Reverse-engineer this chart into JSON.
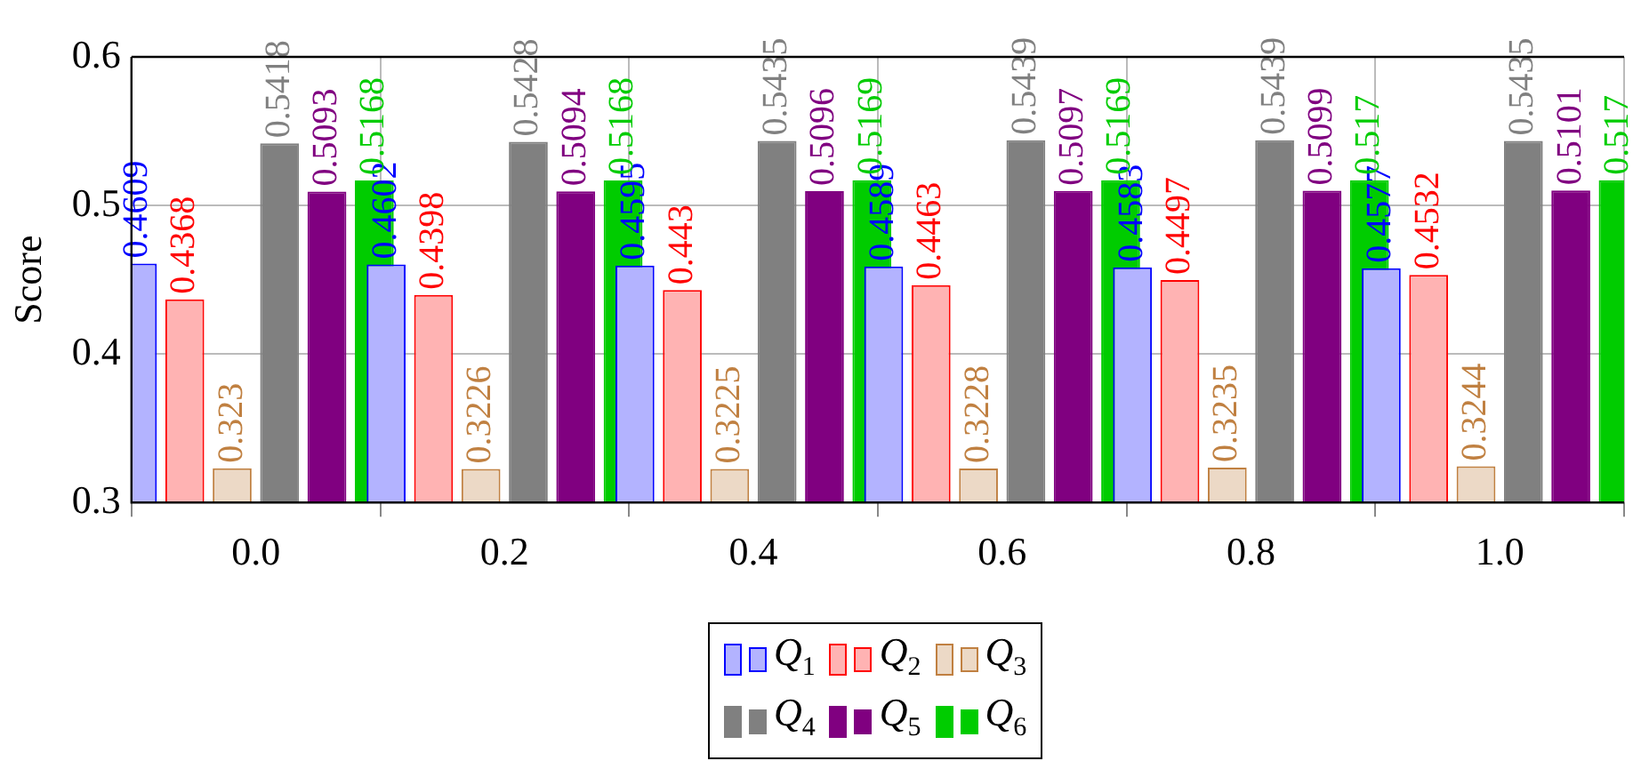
{
  "chart_data": {
    "type": "bar",
    "ylabel": "Score",
    "x": [
      0,
      0.2,
      0.4,
      0.6,
      0.8,
      1.0
    ],
    "xlim": [
      -0.1,
      1.1
    ],
    "xticks": [
      {
        "value": 0,
        "label": "0.0"
      },
      0.2,
      0.4,
      0.6,
      0.8,
      {
        "value": 1,
        "label": "1.0"
      }
    ],
    "ylim": [
      0.3,
      0.6
    ],
    "yticks": [
      0.3,
      0.4,
      0.5,
      0.6
    ],
    "grid": true,
    "legend": "bottom",
    "data_labels": true,
    "series": [
      {
        "name": "Q$_{1}$",
        "color": "#b3b3ff",
        "values": [
          0.4609,
          0.4602,
          0.4595,
          0.4589,
          0.4583,
          0.4577
        ]
      },
      {
        "name": "Q$_{2}$",
        "color": "#ffb3b3",
        "values": [
          0.4368,
          0.4398,
          0.443,
          0.4463,
          0.4497,
          0.4532
        ]
      },
      {
        "name": "Q$_{3}$",
        "color": "#ecd9c6",
        "values": [
          0.323,
          0.3226,
          0.3225,
          0.3228,
          0.3235,
          0.3244
        ]
      },
      {
        "name": "Q$_{4}$",
        "color": "#808080",
        "values": [
          0.5418,
          0.5428,
          0.5435,
          0.5439,
          0.5439,
          0.5435
        ]
      },
      {
        "name": "Q$_{5}$",
        "color": "#800080",
        "values": [
          0.5093,
          0.5094,
          0.5096,
          0.5097,
          0.5099,
          0.5101
        ]
      },
      {
        "name": "Q$_{6}$",
        "color": "#00cc00",
        "values": [
          0.5168,
          0.5168,
          0.5169,
          0.5169,
          0.517,
          0.517
        ]
      }
    ]
  }
}
